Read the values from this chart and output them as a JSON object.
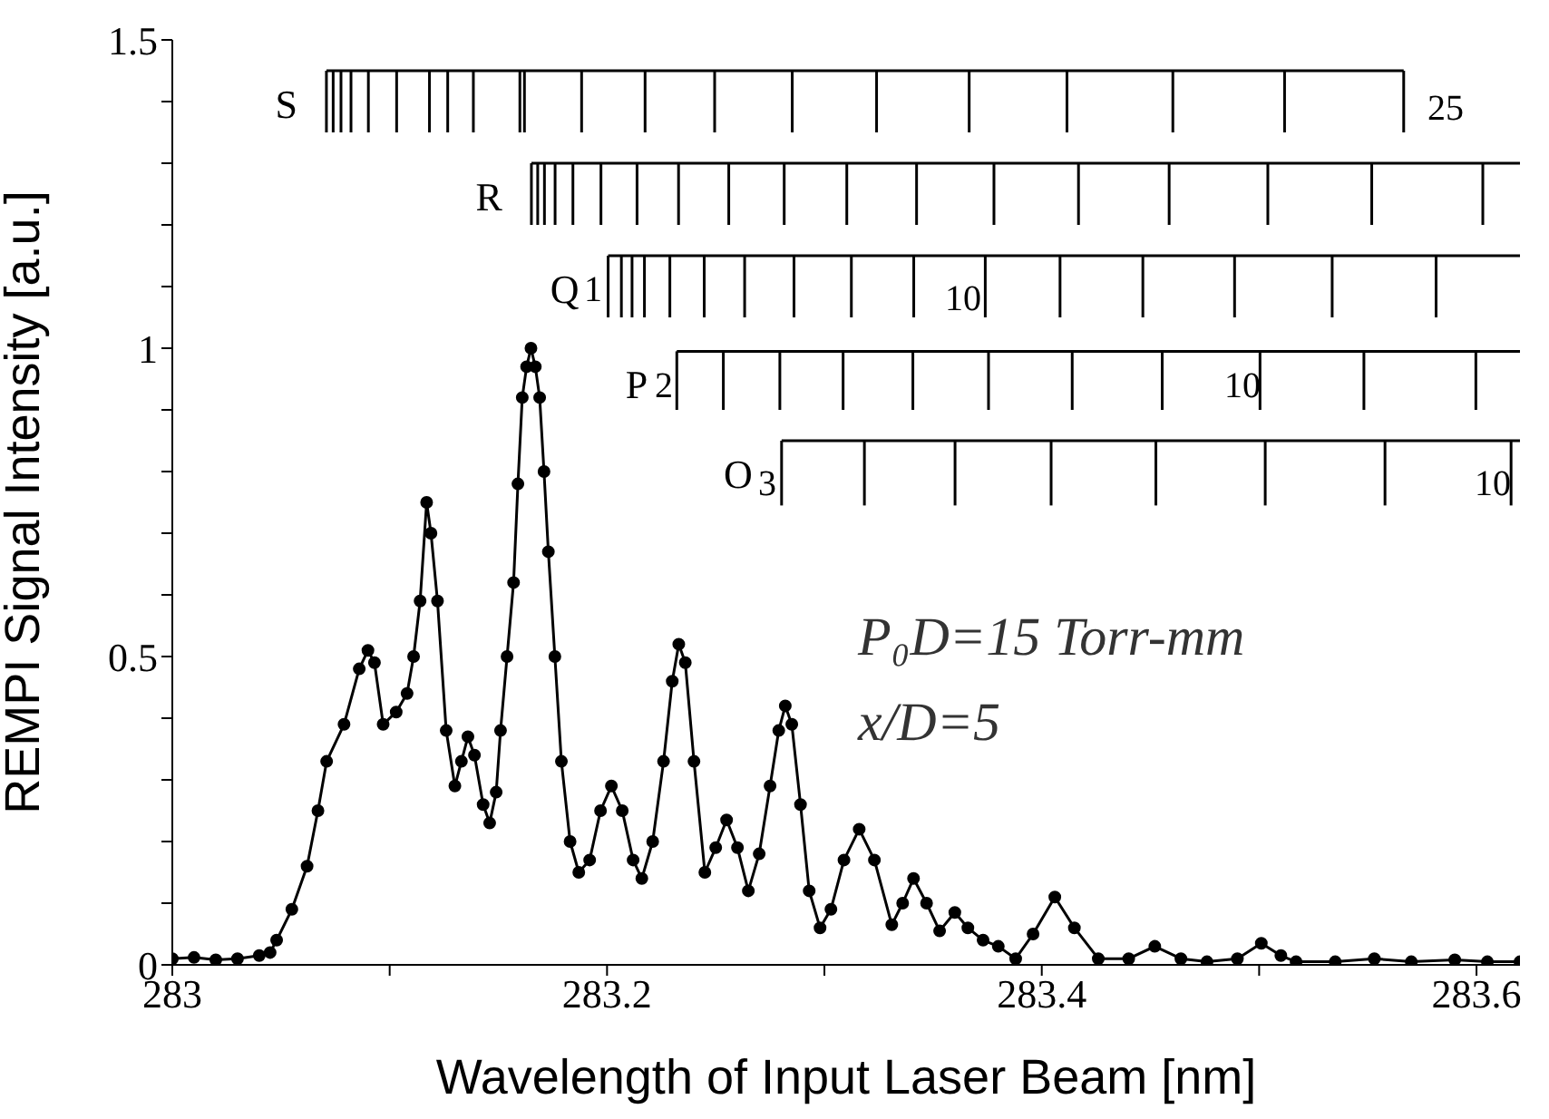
{
  "chart_data": {
    "type": "line",
    "xlabel": "Wavelength of Input Laser Beam [nm]",
    "ylabel": "REMPI Signal Intensity [a.u.]",
    "xlim": [
      283,
      283.62
    ],
    "xticks": [
      283,
      {
        "value": 283.1,
        "label": null
      },
      283.2,
      {
        "value": 283.3,
        "label": null
      },
      283.4,
      {
        "value": 283.5,
        "label": null
      },
      283.6
    ],
    "ylim": [
      0,
      1.5
    ],
    "yticks": [
      0,
      {
        "value": 0.1,
        "label": null
      },
      {
        "value": 0.2,
        "label": null
      },
      {
        "value": 0.3,
        "label": null
      },
      {
        "value": 0.4,
        "label": null
      },
      0.5,
      {
        "value": 0.6,
        "label": null
      },
      {
        "value": 0.7,
        "label": null
      },
      {
        "value": 0.8,
        "label": null
      },
      {
        "value": 0.9,
        "label": null
      },
      1,
      {
        "value": 1.1,
        "label": null
      },
      {
        "value": 1.2,
        "label": null
      },
      {
        "value": 1.3,
        "label": null
      },
      {
        "value": 1.4,
        "label": null
      },
      1.5
    ],
    "series": [
      {
        "marker": "circle",
        "color": "#000000",
        "x": [
          283.0,
          283.01,
          283.02,
          283.03,
          283.04,
          283.045,
          283.048,
          283.055,
          283.062,
          283.067,
          283.071,
          283.079,
          283.086,
          283.09,
          283.093,
          283.097,
          283.103,
          283.108,
          283.111,
          283.114,
          283.117,
          283.119,
          283.122,
          283.126,
          283.13,
          283.133,
          283.136,
          283.139,
          283.143,
          283.146,
          283.149,
          283.151,
          283.154,
          283.157,
          283.159,
          283.161,
          283.163,
          283.165,
          283.167,
          283.169,
          283.171,
          283.173,
          283.176,
          283.179,
          283.183,
          283.187,
          283.192,
          283.197,
          283.202,
          283.207,
          283.212,
          283.216,
          283.221,
          283.226,
          283.23,
          283.233,
          283.236,
          283.24,
          283.245,
          283.25,
          283.255,
          283.26,
          283.265,
          283.27,
          283.275,
          283.279,
          283.282,
          283.285,
          283.289,
          283.293,
          283.298,
          283.303,
          283.309,
          283.316,
          283.323,
          283.331,
          283.336,
          283.341,
          283.347,
          283.353,
          283.36,
          283.366,
          283.373,
          283.38,
          283.388,
          283.396,
          283.406,
          283.415,
          283.426,
          283.44,
          283.452,
          283.464,
          283.476,
          283.49,
          283.501,
          283.51,
          283.517,
          283.535,
          283.553,
          283.57,
          283.59,
          283.605,
          283.62
        ],
        "values": [
          0.01,
          0.012,
          0.008,
          0.01,
          0.015,
          0.02,
          0.04,
          0.09,
          0.16,
          0.25,
          0.33,
          0.39,
          0.48,
          0.51,
          0.49,
          0.39,
          0.41,
          0.44,
          0.5,
          0.59,
          0.75,
          0.7,
          0.59,
          0.38,
          0.29,
          0.33,
          0.37,
          0.34,
          0.26,
          0.23,
          0.28,
          0.38,
          0.5,
          0.62,
          0.78,
          0.92,
          0.97,
          1.0,
          0.97,
          0.92,
          0.8,
          0.67,
          0.5,
          0.33,
          0.2,
          0.15,
          0.17,
          0.25,
          0.29,
          0.25,
          0.17,
          0.14,
          0.2,
          0.33,
          0.46,
          0.52,
          0.49,
          0.33,
          0.15,
          0.19,
          0.235,
          0.19,
          0.12,
          0.18,
          0.29,
          0.38,
          0.42,
          0.39,
          0.26,
          0.12,
          0.06,
          0.09,
          0.17,
          0.22,
          0.17,
          0.065,
          0.1,
          0.14,
          0.1,
          0.055,
          0.085,
          0.06,
          0.04,
          0.03,
          0.01,
          0.05,
          0.11,
          0.06,
          0.01,
          0.01,
          0.03,
          0.01,
          0.005,
          0.01,
          0.035,
          0.015,
          0.005,
          0.005,
          0.01,
          0.005,
          0.008,
          0.005,
          0.005
        ]
      },
      {
        "name": "S",
        "marker": "none",
        "color": "#000000",
        "x": [
          283.0709,
          283.074,
          283.0776,
          283.0822,
          283.0902,
          283.1032,
          283.1183,
          283.1267,
          283.1385,
          283.1599,
          283.162,
          283.1883,
          283.2175,
          283.2495,
          283.2852,
          283.324,
          283.3666,
          283.4116,
          283.4603,
          283.5117,
          283.5665
        ],
        "values": [
          1.45,
          1.45,
          1.45,
          1.45,
          1.45,
          1.45,
          1.45,
          1.45,
          1.45,
          1.45,
          1.45,
          1.45,
          1.45,
          1.45,
          1.45,
          1.45,
          1.45,
          1.45,
          1.45,
          1.45,
          1.45
        ],
        "errors": [
          [
            1.35,
            1.45
          ],
          [
            1.35,
            1.45
          ],
          [
            1.35,
            1.45
          ],
          [
            1.35,
            1.45
          ],
          [
            1.35,
            1.45
          ],
          [
            1.35,
            1.45
          ],
          [
            1.35,
            1.45
          ],
          [
            1.35,
            1.45
          ],
          [
            1.35,
            1.45
          ],
          [
            1.35,
            1.45
          ],
          [
            1.35,
            1.45
          ],
          [
            1.35,
            1.45
          ],
          [
            1.35,
            1.45
          ],
          [
            1.35,
            1.45
          ],
          [
            1.35,
            1.45
          ],
          [
            1.35,
            1.45
          ],
          [
            1.35,
            1.45
          ],
          [
            1.35,
            1.45
          ],
          [
            1.35,
            1.45
          ],
          [
            1.35,
            1.45
          ],
          [
            1.35,
            1.45
          ]
        ]
      },
      {
        "name": "R",
        "marker": "none",
        "color": "#000000",
        "x": [
          283.1652,
          283.1681,
          283.1712,
          283.1761,
          283.1843,
          283.1972,
          283.2138,
          283.2329,
          283.256,
          283.2815,
          283.3103,
          283.3424,
          283.378,
          283.4169,
          283.4586,
          283.504,
          283.5518,
          283.6029,
          283.62
        ],
        "values": [
          1.3,
          1.3,
          1.3,
          1.3,
          1.3,
          1.3,
          1.3,
          1.3,
          1.3,
          1.3,
          1.3,
          1.3,
          1.3,
          1.3,
          1.3,
          1.3,
          1.3,
          1.3,
          1.3
        ],
        "errors": [
          [
            1.2,
            1.3
          ],
          [
            1.2,
            1.3
          ],
          [
            1.2,
            1.3
          ],
          [
            1.2,
            1.3
          ],
          [
            1.2,
            1.3
          ],
          [
            1.2,
            1.3
          ],
          [
            1.2,
            1.3
          ],
          [
            1.2,
            1.3
          ],
          [
            1.2,
            1.3
          ],
          [
            1.2,
            1.3
          ],
          [
            1.2,
            1.3
          ],
          [
            1.2,
            1.3
          ],
          [
            1.2,
            1.3
          ],
          [
            1.2,
            1.3
          ],
          [
            1.2,
            1.3
          ],
          [
            1.2,
            1.3
          ],
          [
            1.2,
            1.3
          ],
          [
            1.2,
            1.3
          ],
          null
        ]
      },
      {
        "name": "Q",
        "marker": "none",
        "color": "#000000",
        "x": [
          283.2005,
          283.2066,
          283.2115,
          283.2172,
          283.2289,
          283.2447,
          283.2633,
          283.286,
          283.3124,
          283.3411,
          283.374,
          283.4084,
          283.4465,
          283.4887,
          283.5336,
          283.5814,
          283.62
        ],
        "values": [
          1.15,
          1.15,
          1.15,
          1.15,
          1.15,
          1.15,
          1.15,
          1.15,
          1.15,
          1.15,
          1.15,
          1.15,
          1.15,
          1.15,
          1.15,
          1.15,
          1.15
        ],
        "errors": [
          [
            1.05,
            1.15
          ],
          [
            1.05,
            1.15
          ],
          [
            1.05,
            1.15
          ],
          [
            1.05,
            1.15
          ],
          [
            1.05,
            1.15
          ],
          [
            1.05,
            1.15
          ],
          [
            1.05,
            1.15
          ],
          [
            1.05,
            1.15
          ],
          [
            1.05,
            1.15
          ],
          [
            1.05,
            1.15
          ],
          [
            1.05,
            1.15
          ],
          [
            1.05,
            1.15
          ],
          [
            1.05,
            1.15
          ],
          [
            1.05,
            1.15
          ],
          [
            1.05,
            1.15
          ],
          [
            1.05,
            1.15
          ],
          null
        ]
      },
      {
        "name": "P",
        "marker": "none",
        "color": "#000000",
        "x": [
          283.2321,
          283.2535,
          283.2795,
          283.3086,
          283.3407,
          283.3755,
          283.414,
          283.4554,
          283.5004,
          283.5482,
          283.5997,
          283.62
        ],
        "values": [
          0.995,
          0.995,
          0.995,
          0.995,
          0.995,
          0.995,
          0.995,
          0.995,
          0.995,
          0.995,
          0.995,
          0.995
        ],
        "errors": [
          [
            0.9,
            0.995
          ],
          [
            0.9,
            0.995
          ],
          [
            0.9,
            0.995
          ],
          [
            0.9,
            0.995
          ],
          [
            0.9,
            0.995
          ],
          [
            0.9,
            0.995
          ],
          [
            0.9,
            0.995
          ],
          [
            0.9,
            0.995
          ],
          [
            0.9,
            0.995
          ],
          [
            0.9,
            0.995
          ],
          [
            0.9,
            0.995
          ],
          null
        ]
      },
      {
        "name": "O",
        "marker": "none",
        "color": "#000000",
        "x": [
          283.2803,
          283.3184,
          283.3601,
          283.4043,
          283.4525,
          283.5028,
          283.5579,
          283.6159,
          283.62
        ],
        "values": [
          0.85,
          0.85,
          0.85,
          0.85,
          0.85,
          0.85,
          0.85,
          0.85,
          0.85
        ],
        "errors": [
          [
            0.745,
            0.85
          ],
          [
            0.745,
            0.85
          ],
          [
            0.745,
            0.85
          ],
          [
            0.745,
            0.85
          ],
          [
            0.745,
            0.85
          ],
          [
            0.745,
            0.85
          ],
          [
            0.745,
            0.85
          ],
          [
            0.745,
            0.85
          ],
          null
        ]
      }
    ],
    "annotations": [
      "25",
      "1",
      "10",
      "2",
      "10",
      "3",
      "10",
      "P₀D=15 Torr-mm",
      "x/D=5"
    ]
  }
}
